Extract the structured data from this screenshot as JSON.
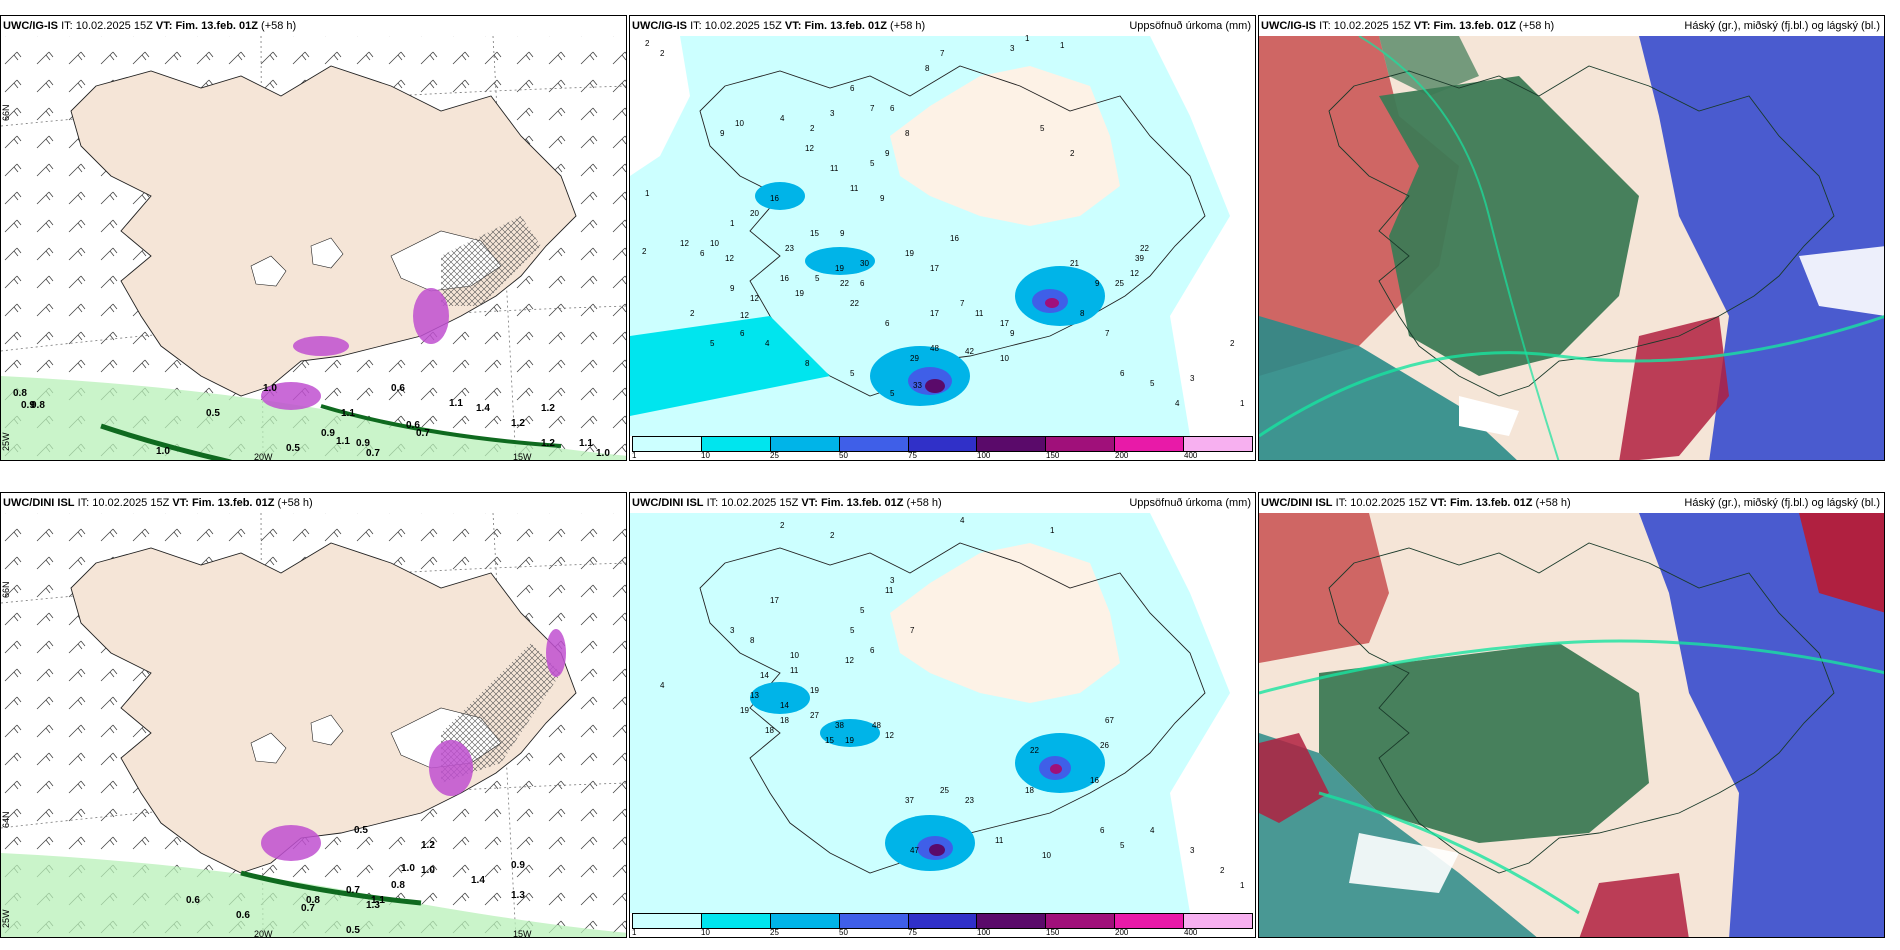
{
  "panels": [
    {
      "model": "UWC/IG-IS",
      "it_label": "IT:",
      "it": "10.02.2025 15Z",
      "vt_label": "VT:",
      "vt": "Fim. 13.feb. 01Z",
      "lead": "(+58 h)",
      "right_title": ""
    },
    {
      "model": "UWC/IG-IS",
      "it_label": "IT:",
      "it": "10.02.2025 15Z",
      "vt_label": "VT:",
      "vt": "Fim. 13.feb. 01Z",
      "lead": "(+58 h)",
      "right_title": "Uppsöfnuð úrkoma (mm)"
    },
    {
      "model": "UWC/IG-IS",
      "it_label": "IT:",
      "it": "10.02.2025 15Z",
      "vt_label": "VT:",
      "vt": "Fim. 13.feb. 01Z",
      "lead": "(+58 h)",
      "right_title": "Háský (gr.), miðský (fj.bl.) og lágský (bl.)"
    },
    {
      "model": "UWC/DINI ISL",
      "it_label": "IT:",
      "it": "10.02.2025 15Z",
      "vt_label": "VT:",
      "vt": "Fim. 13.feb. 01Z",
      "lead": "(+58 h)",
      "right_title": ""
    },
    {
      "model": "UWC/DINI ISL",
      "it_label": "IT:",
      "it": "10.02.2025 15Z",
      "vt_label": "VT:",
      "vt": "Fim. 13.feb. 01Z",
      "lead": "(+58 h)",
      "right_title": "Uppsöfnuð úrkoma (mm)"
    },
    {
      "model": "UWC/DINI ISL",
      "it_label": "IT:",
      "it": "10.02.2025 15Z",
      "vt_label": "VT:",
      "vt": "Fim. 13.feb. 01Z",
      "lead": "(+58 h)",
      "right_title": "Háský (gr.), miðský (fj.bl.) og lágský (bl.)"
    }
  ],
  "axis_labels": {
    "lat66": "66N",
    "lat64": "64N",
    "lon25": "25W",
    "lon20": "20W",
    "lon15": "15W"
  },
  "wind_contours_top": [
    "0.5",
    "0.5",
    "1.0",
    "0.8",
    "1.1",
    "0.9",
    "1.1",
    "0.9",
    "0.7",
    "0.6",
    "0.7",
    "1.2",
    "1.2",
    "1.0",
    "0.6",
    "1.1",
    "1.4",
    "1.2",
    "1.1",
    "1.0",
    "0.9",
    "0.8"
  ],
  "wind_contours_bottom": [
    "0.6",
    "0.6",
    "0.7",
    "0.5",
    "0.8",
    "1.0",
    "1.0",
    "1.1",
    "1.2",
    "0.9",
    "1.4",
    "1.3",
    "0.7",
    "1.3",
    "0.5",
    "0.8"
  ],
  "precip_legend": {
    "ticks": [
      "1",
      "10",
      "25",
      "50",
      "75",
      "100",
      "150",
      "200",
      "400"
    ],
    "colors": [
      "#ccffff",
      "#00e5ee",
      "#00b4e8",
      "#3f5fe8",
      "#3030c8",
      "#5a0a6a",
      "#a0107a",
      "#e81aa8",
      "#f7b0f0"
    ]
  },
  "precip_numbers_top": [
    "2",
    "2",
    "7",
    "8",
    "3",
    "1",
    "6",
    "6",
    "7",
    "8",
    "3",
    "2",
    "4",
    "9",
    "10",
    "9",
    "5",
    "12",
    "11",
    "11",
    "9",
    "5",
    "2",
    "1",
    "2",
    "12",
    "10",
    "1",
    "16",
    "20",
    "23",
    "15",
    "12",
    "6",
    "19",
    "19",
    "9",
    "22",
    "16",
    "17",
    "6",
    "5",
    "30",
    "19",
    "22",
    "17",
    "16",
    "1",
    "12",
    "12",
    "7",
    "6",
    "9",
    "6",
    "4",
    "2",
    "5",
    "8",
    "5",
    "48",
    "42",
    "29",
    "10",
    "33",
    "5",
    "9",
    "11",
    "17",
    "21",
    "39",
    "22",
    "25",
    "12",
    "9",
    "8",
    "7",
    "6",
    "5",
    "4",
    "3",
    "2",
    "1"
  ],
  "precip_numbers_bottom": [
    "2",
    "2",
    "4",
    "1",
    "5",
    "3",
    "8",
    "3",
    "7",
    "6",
    "5",
    "17",
    "11",
    "14",
    "11",
    "19",
    "12",
    "18",
    "14",
    "13",
    "19",
    "18",
    "10",
    "27",
    "38",
    "48",
    "15",
    "19",
    "12",
    "4",
    "22",
    "67",
    "26",
    "18",
    "16",
    "23",
    "37",
    "47",
    "25",
    "11",
    "10",
    "6",
    "5",
    "4",
    "3",
    "2",
    "1"
  ],
  "colors": {
    "land": "#f5e5d7",
    "snow": "#ffffff",
    "sea": "#ffffff",
    "green_light": "#b8f0b8",
    "green_dark": "#0f6a1f",
    "magenta": "#c050d0",
    "hatch": "#555555",
    "precip_land": "#fdf2e6",
    "cloud_high": "#3d7a55",
    "cloud_mid": "#4a5bcf",
    "cloud_low": "#b02040",
    "cloud_red": "#c85050",
    "cloud_teal": "#2a8b88"
  }
}
